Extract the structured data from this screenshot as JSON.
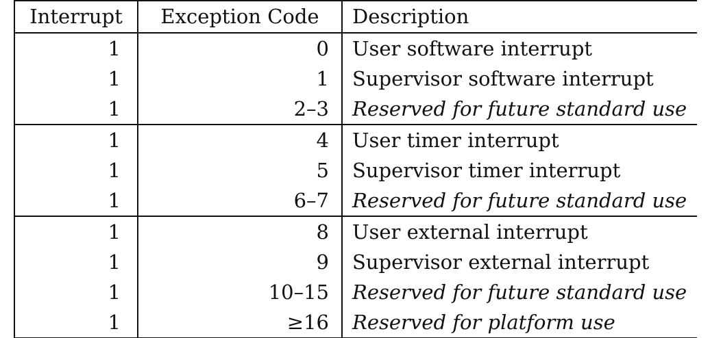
{
  "table": {
    "headers": {
      "interrupt": "Interrupt",
      "exception_code": "Exception Code",
      "description": "Description"
    },
    "rows": [
      {
        "interrupt": "1",
        "code": "0",
        "description": "User software interrupt",
        "reserved": false
      },
      {
        "interrupt": "1",
        "code": "1",
        "description": "Supervisor software interrupt",
        "reserved": false
      },
      {
        "interrupt": "1",
        "code": "2–3",
        "description": "Reserved for future standard use",
        "reserved": true
      },
      {
        "interrupt": "1",
        "code": "4",
        "description": "User timer interrupt",
        "reserved": false
      },
      {
        "interrupt": "1",
        "code": "5",
        "description": "Supervisor timer interrupt",
        "reserved": false
      },
      {
        "interrupt": "1",
        "code": "6–7",
        "description": "Reserved for future standard use",
        "reserved": true
      },
      {
        "interrupt": "1",
        "code": "8",
        "description": "User external interrupt",
        "reserved": false
      },
      {
        "interrupt": "1",
        "code": "9",
        "description": "Supervisor external interrupt",
        "reserved": false
      },
      {
        "interrupt": "1",
        "code": "10–15",
        "description": "Reserved for future standard use",
        "reserved": true
      },
      {
        "interrupt": "1",
        "code": "≥16",
        "description": "Reserved for platform use",
        "reserved": true
      }
    ]
  }
}
